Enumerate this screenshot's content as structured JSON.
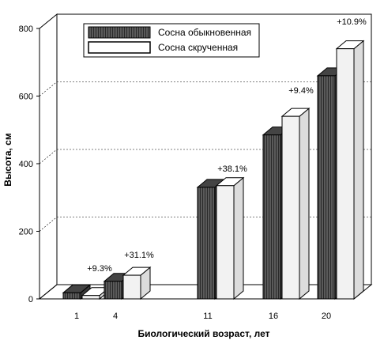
{
  "chart_data": {
    "type": "bar",
    "style": "3d-grouped",
    "xlabel": "Биологический возраст, лет",
    "ylabel": "Высота, см",
    "ylim": [
      0,
      800
    ],
    "yticks": [
      "0",
      "200",
      "400",
      "600",
      "800"
    ],
    "categories": [
      "1",
      "4",
      "11",
      "16",
      "20"
    ],
    "series": [
      {
        "name": "Сосна обыкновенная",
        "color": "#555555",
        "values": [
          18,
          52,
          330,
          485,
          660
        ]
      },
      {
        "name": "Сосна скрученная",
        "color": "#f2f2f2",
        "values": [
          10,
          70,
          335,
          540,
          740
        ]
      }
    ],
    "annotations": [
      {
        "category": "4",
        "text": "+9.3%"
      },
      {
        "category": "4",
        "text": "+31.1%"
      },
      {
        "category": "11",
        "text": "+38.1%"
      },
      {
        "category": "16",
        "text": "+9.4%"
      },
      {
        "category": "20",
        "text": "+10.9%"
      }
    ],
    "legend_position": "top-left",
    "grid": true
  }
}
